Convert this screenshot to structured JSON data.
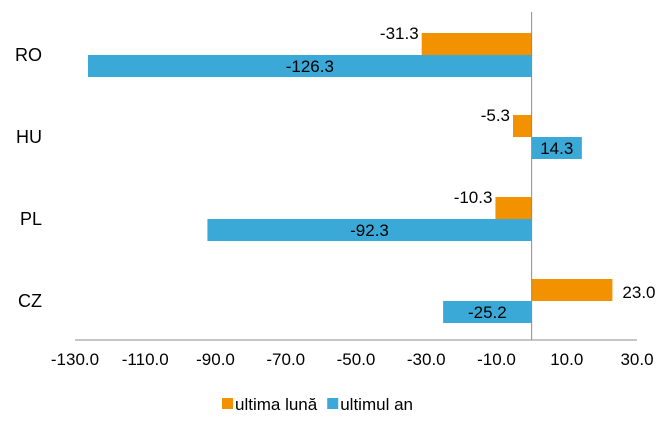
{
  "chart_data": {
    "type": "bar",
    "orientation": "horizontal",
    "categories": [
      "RO",
      "HU",
      "PL",
      "CZ"
    ],
    "series": [
      {
        "name": "ultima lună",
        "color": "#f39200",
        "values": [
          -31.3,
          -5.3,
          -10.3,
          23.0
        ],
        "labels": [
          "-31.3",
          "-5.3",
          "-10.3",
          "23.0"
        ]
      },
      {
        "name": "ultimul an",
        "color": "#3aa9d8",
        "values": [
          -126.3,
          14.3,
          -92.3,
          -25.2
        ],
        "labels": [
          "-126.3",
          "14.3",
          "-92.3",
          "-25.2"
        ]
      }
    ],
    "xlim": [
      -130,
      30
    ],
    "xticks": [
      "-130.0",
      "-110.0",
      "-90.0",
      "-70.0",
      "-50.0",
      "-30.0",
      "-10.0",
      "10.0",
      "30.0"
    ],
    "grid": false,
    "legend_position": "bottom",
    "title": "",
    "xlabel": "",
    "ylabel": ""
  }
}
